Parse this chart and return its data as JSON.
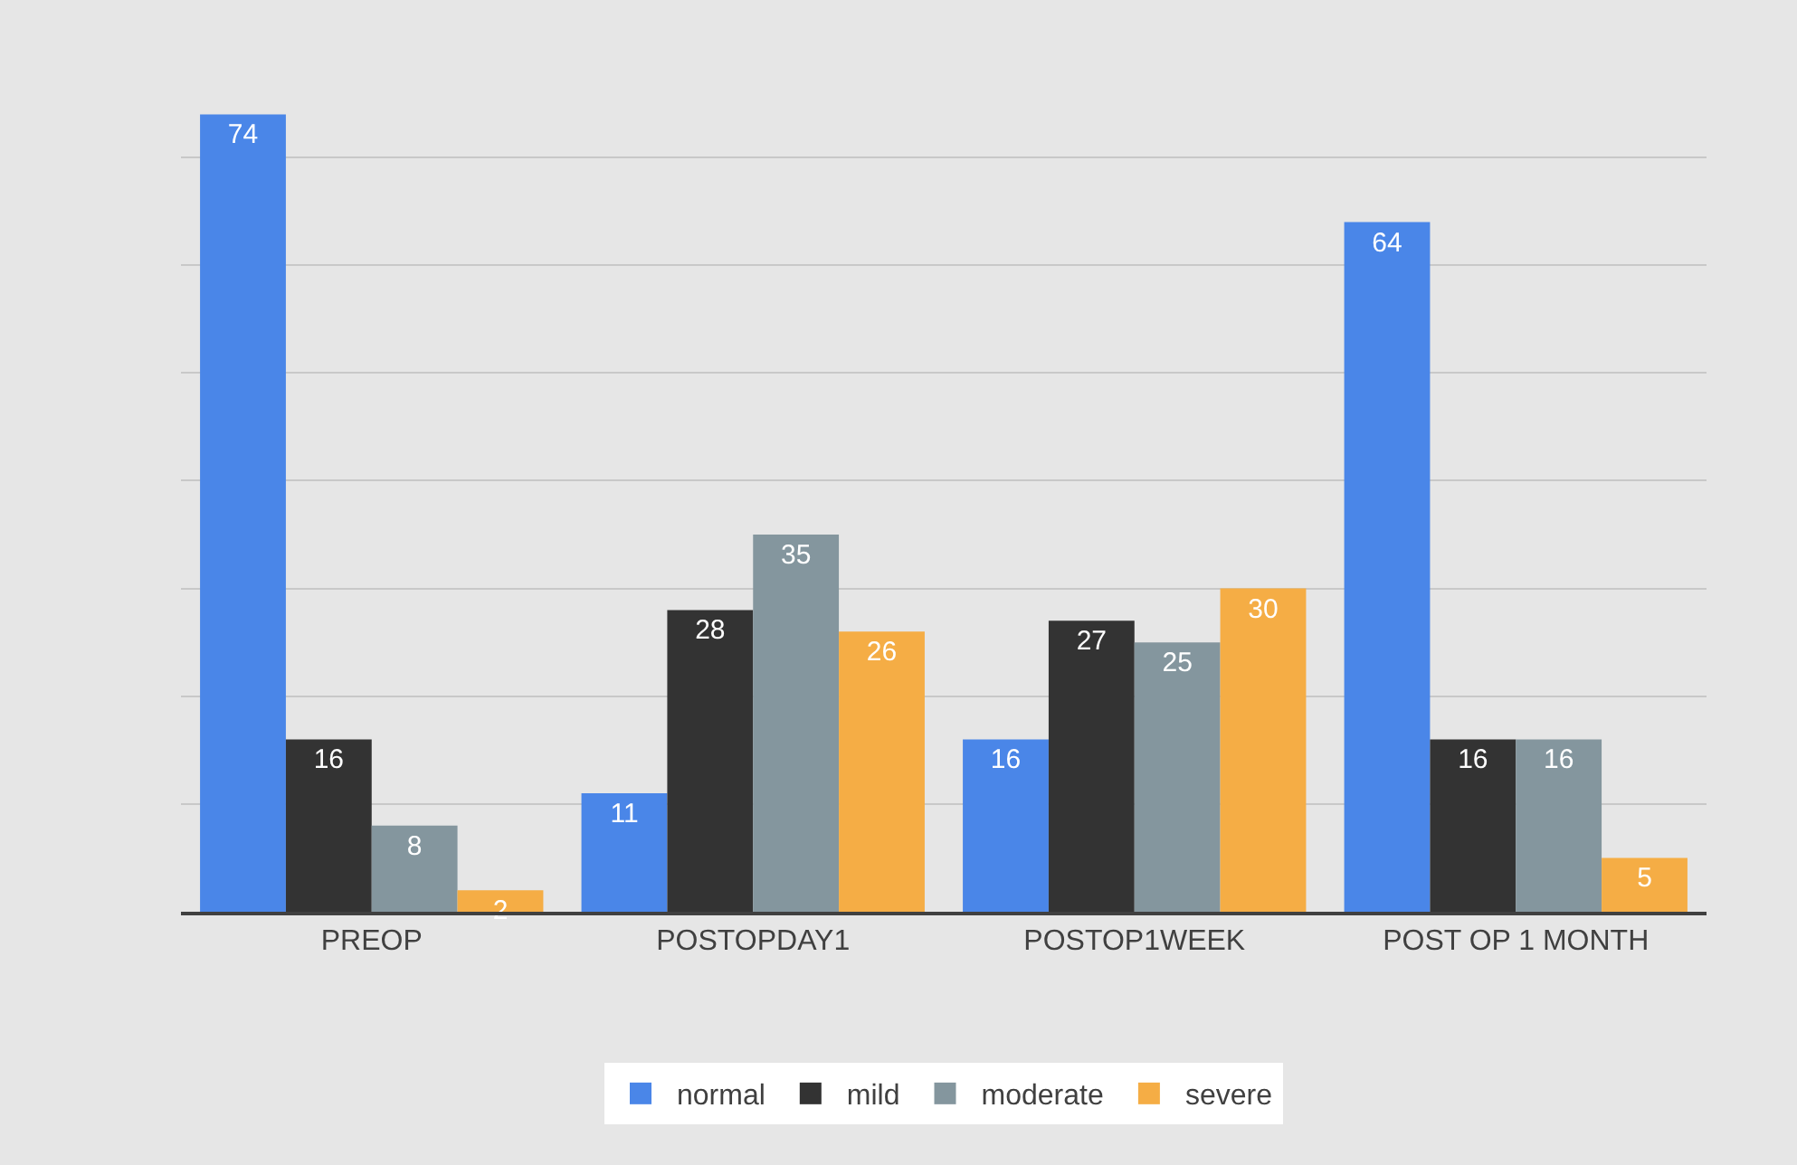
{
  "chart_data": {
    "type": "bar",
    "categories": [
      "PREOP",
      "POSTOPDAY1",
      "POSTOP1WEEK",
      "POST OP 1 MONTH"
    ],
    "series": [
      {
        "name": "normal",
        "color": "#4a86e8",
        "values": [
          74,
          11,
          16,
          64
        ]
      },
      {
        "name": "mild",
        "color": "#333333",
        "values": [
          16,
          28,
          27,
          16
        ]
      },
      {
        "name": "moderate",
        "color": "#84969e",
        "values": [
          8,
          35,
          25,
          16
        ]
      },
      {
        "name": "severe",
        "color": "#f5ad45",
        "values": [
          2,
          26,
          30,
          5
        ]
      }
    ],
    "yticks": [
      {
        "value": 0,
        "label": null
      },
      {
        "value": 10,
        "label": null
      },
      {
        "value": 20,
        "label": null
      },
      {
        "value": 30,
        "label": null
      },
      {
        "value": 40,
        "label": null
      },
      {
        "value": 50,
        "label": null
      },
      {
        "value": 60,
        "label": null
      },
      {
        "value": 70,
        "label": null
      }
    ],
    "grid": "y",
    "legend": "bottom",
    "data_labels": true
  }
}
